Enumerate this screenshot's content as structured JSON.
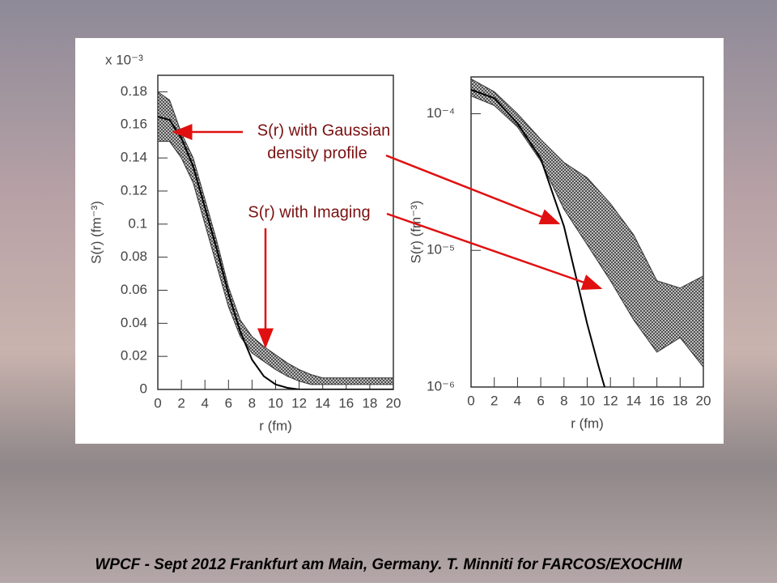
{
  "chart_data": [
    {
      "type": "band-line",
      "multiplier": "x 10⁻³",
      "x_label": "r (fm)",
      "y_label": "S(r) (fm⁻³)",
      "xlim": [
        0,
        20
      ],
      "xticks": [
        0,
        2,
        4,
        6,
        8,
        10,
        12,
        14,
        16,
        18,
        20
      ],
      "ylim": [
        0,
        0.19
      ],
      "yticks": [
        0,
        0.02,
        0.04,
        0.06,
        0.08,
        0.1,
        0.12,
        0.14,
        0.16,
        0.18
      ],
      "series": [
        {
          "kind": "band",
          "color": "#333333",
          "x": [
            0,
            1,
            2,
            3,
            4,
            5,
            6,
            7,
            8,
            9,
            10,
            11,
            12,
            13,
            14,
            15,
            16,
            17,
            18,
            19,
            20
          ],
          "upper": [
            0.18,
            0.175,
            0.155,
            0.14,
            0.115,
            0.09,
            0.062,
            0.042,
            0.032,
            0.026,
            0.021,
            0.016,
            0.012,
            0.009,
            0.007,
            0.007,
            0.007,
            0.007,
            0.007,
            0.007,
            0.007
          ],
          "lower": [
            0.15,
            0.15,
            0.14,
            0.125,
            0.1,
            0.075,
            0.05,
            0.032,
            0.022,
            0.017,
            0.012,
            0.008,
            0.005,
            0.003,
            0.003,
            0.003,
            0.003,
            0.003,
            0.003,
            0.003,
            0.003
          ]
        },
        {
          "kind": "line",
          "color": "#000000",
          "x": [
            0,
            1,
            2,
            3,
            4,
            5,
            6,
            7,
            8,
            9,
            10,
            11,
            12,
            14,
            16,
            18,
            20
          ],
          "values": [
            0.165,
            0.163,
            0.152,
            0.135,
            0.11,
            0.085,
            0.058,
            0.035,
            0.018,
            0.008,
            0.003,
            0.001,
            0,
            0,
            0,
            0,
            0
          ]
        }
      ]
    },
    {
      "type": "band-line",
      "x_label": "r (fm)",
      "y_label": "S(r) (fm⁻³)",
      "log_y": true,
      "xlim": [
        0,
        20
      ],
      "xticks": [
        0,
        2,
        4,
        6,
        8,
        10,
        12,
        14,
        16,
        18,
        20
      ],
      "ylim": [
        1e-06,
        0.000186
      ],
      "yticks": [
        {
          "value": 1e-06,
          "label": "10⁻⁶"
        },
        {
          "value": 1e-05,
          "label": "10⁻⁵"
        },
        {
          "value": 0.0001,
          "label": "10⁻⁴"
        }
      ],
      "series": [
        {
          "kind": "band",
          "color": "#333333",
          "x": [
            0,
            2,
            4,
            6,
            8,
            10,
            12,
            14,
            16,
            18,
            20
          ],
          "upper": [
            0.00018,
            0.000145,
            0.0001,
            6.5e-05,
            4.4e-05,
            3.4e-05,
            2.2e-05,
            1.3e-05,
            6e-06,
            5.3e-06,
            6.5e-06
          ],
          "lower": [
            0.000135,
            0.000115,
            8e-05,
            4.5e-05,
            2e-05,
            1.1e-05,
            6e-06,
            3.1e-06,
            1.8e-06,
            2.3e-06,
            1.4e-06
          ]
        },
        {
          "kind": "line",
          "color": "#000000",
          "x": [
            0,
            2,
            4,
            6,
            8,
            10,
            11,
            11.5
          ],
          "values": [
            0.00015,
            0.00013,
            8.5e-05,
            4.7e-05,
            1.5e-05,
            2.9e-06,
            1.4e-06,
            1e-06
          ]
        }
      ]
    }
  ],
  "annotations": [
    {
      "lines": [
        "S(r) with Gaussian",
        "density profile"
      ]
    },
    {
      "lines": [
        "S(r) with Imaging"
      ]
    }
  ],
  "footer": "WPCF - Sept 2012 Frankfurt am Main, Germany. T. Minniti for FARCOS/EXOCHIM"
}
